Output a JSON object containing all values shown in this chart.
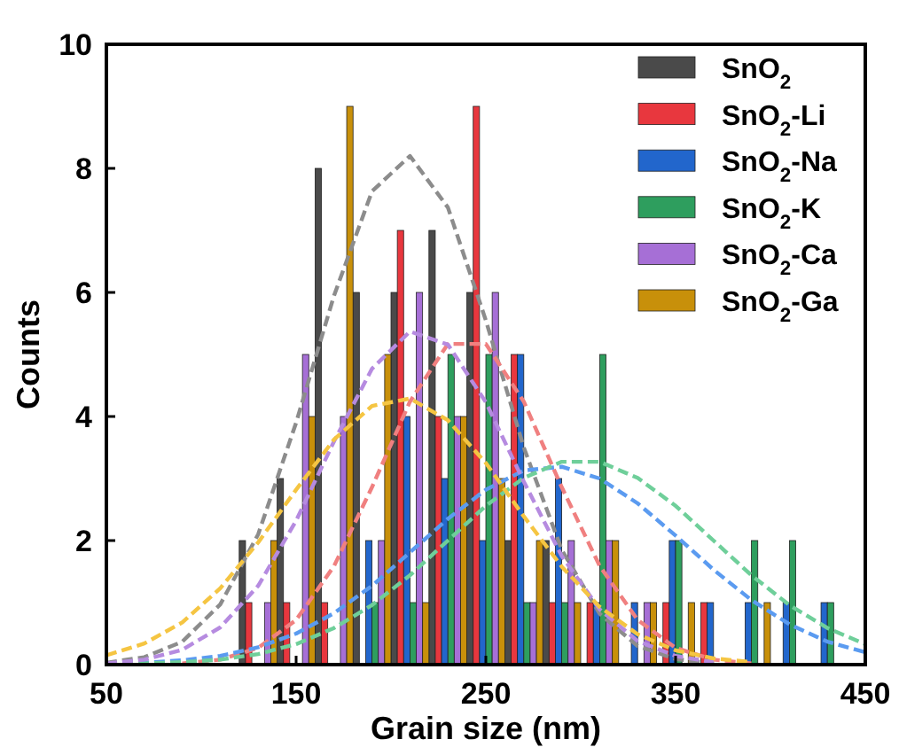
{
  "chart_data": {
    "type": "histogram",
    "xlabel": "Grain size (nm)",
    "ylabel": "Counts",
    "bins": [
      120,
      140,
      160,
      180,
      200,
      220,
      240,
      260,
      280,
      300,
      320,
      340,
      360,
      380,
      400,
      420,
      440
    ],
    "xlim": [
      50,
      450
    ],
    "xticks": [
      50,
      150,
      250,
      350,
      450
    ],
    "ylim": [
      0,
      10
    ],
    "yticks": [
      0,
      2,
      4,
      6,
      8,
      10
    ],
    "legend": "top right",
    "line_style": "dashed",
    "series": [
      {
        "name": "SnO$_{2}$",
        "color": "#4a4a4a",
        "values": [
          2,
          3,
          8,
          6,
          6,
          7,
          6,
          2,
          2,
          0,
          0,
          0,
          0,
          0,
          0,
          0
        ]
      },
      {
        "name": "SnO$_{2}$-Li",
        "color": "#e8373e",
        "values": [
          1,
          1,
          1,
          0,
          7,
          4,
          9,
          5,
          1,
          1,
          0,
          1,
          1,
          0,
          0,
          0
        ]
      },
      {
        "name": "SnO$_{2}$-Na",
        "color": "#2266cc",
        "values": [
          0,
          0,
          0,
          2,
          4,
          3,
          2,
          5,
          3,
          1,
          1,
          2,
          1,
          1,
          1,
          1
        ]
      },
      {
        "name": "SnO$_{2}$-K",
        "color": "#2e9e5e",
        "values": [
          0,
          0,
          0,
          1,
          1,
          5,
          5,
          1,
          1,
          5,
          0,
          2,
          0,
          2,
          2,
          1
        ]
      },
      {
        "name": "SnO$_{2}$-Ca",
        "color": "#a66fd6",
        "values": [
          1,
          5,
          4,
          2,
          6,
          4,
          6,
          1,
          2,
          2,
          1,
          0,
          0,
          0,
          0,
          0
        ]
      },
      {
        "name": "SnO$_{2}$-Ga",
        "color": "#c8900a",
        "values": [
          2,
          4,
          9,
          5,
          1,
          4,
          3,
          2,
          1,
          2,
          1,
          1,
          0,
          1,
          0,
          0
        ]
      },
      {
        "type": "line",
        "color": "#8c8c8c",
        "x": [
          50,
          70,
          90,
          110,
          130,
          150,
          170,
          190,
          210,
          230,
          250,
          270,
          290,
          310,
          330,
          350,
          370
        ],
        "values": [
          0.03,
          0.12,
          0.37,
          0.97,
          2.1,
          3.9,
          5.95,
          7.63,
          8.2,
          7.37,
          5.55,
          3.5,
          1.85,
          0.82,
          0.3,
          0.09,
          0.02
        ]
      },
      {
        "type": "line",
        "color": "#f08080",
        "x": [
          90,
          110,
          130,
          150,
          170,
          190,
          210,
          230,
          250,
          270,
          290,
          310,
          330,
          350,
          370,
          390
        ],
        "values": [
          0.02,
          0.08,
          0.27,
          0.72,
          1.59,
          2.86,
          4.24,
          5.17,
          5.17,
          4.24,
          2.86,
          1.59,
          0.72,
          0.27,
          0.08,
          0.02
        ]
      },
      {
        "type": "line",
        "color": "#5b9bf0",
        "x": [
          50,
          70,
          90,
          110,
          130,
          150,
          170,
          190,
          210,
          230,
          250,
          270,
          290,
          310,
          330,
          350,
          370,
          390,
          410,
          430,
          450
        ],
        "values": [
          0.01,
          0.03,
          0.07,
          0.14,
          0.28,
          0.5,
          0.83,
          1.27,
          1.81,
          2.35,
          2.82,
          3.13,
          3.19,
          3.0,
          2.6,
          2.08,
          1.53,
          1.04,
          0.65,
          0.37,
          0.2
        ]
      },
      {
        "type": "line",
        "color": "#6fcf9a",
        "x": [
          50,
          70,
          90,
          110,
          130,
          150,
          170,
          190,
          210,
          230,
          250,
          270,
          290,
          310,
          330,
          350,
          370,
          390,
          410,
          430,
          450
        ],
        "values": [
          0.01,
          0.02,
          0.04,
          0.08,
          0.17,
          0.33,
          0.59,
          0.96,
          1.44,
          2.0,
          2.56,
          3.01,
          3.27,
          3.27,
          3.01,
          2.56,
          2.0,
          1.44,
          0.96,
          0.59,
          0.33
        ]
      },
      {
        "type": "line",
        "color": "#b68be0",
        "x": [
          50,
          70,
          90,
          110,
          130,
          150,
          170,
          190,
          210,
          230,
          250,
          270,
          290,
          310,
          330,
          350,
          370
        ],
        "values": [
          0.02,
          0.08,
          0.24,
          0.6,
          1.27,
          2.32,
          3.6,
          4.77,
          5.37,
          5.16,
          4.23,
          2.95,
          1.75,
          0.89,
          0.38,
          0.14,
          0.04
        ]
      },
      {
        "type": "line",
        "color": "#f5c542",
        "x": [
          50,
          70,
          90,
          110,
          130,
          150,
          170,
          190,
          210,
          230,
          250,
          270,
          290,
          310,
          330,
          350,
          370,
          390
        ],
        "values": [
          0.15,
          0.34,
          0.68,
          1.23,
          1.97,
          2.82,
          3.63,
          4.17,
          4.29,
          3.94,
          3.25,
          2.39,
          1.58,
          0.93,
          0.49,
          0.23,
          0.1,
          0.04
        ]
      }
    ]
  }
}
